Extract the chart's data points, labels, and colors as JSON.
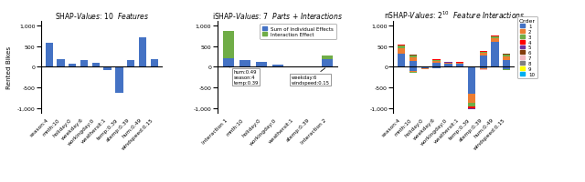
{
  "panel1": {
    "ylabel": "Rented Bikes",
    "ylim": [
      -1100,
      1100
    ],
    "yticks": [
      -1000,
      -500,
      0,
      500,
      1000
    ],
    "categories": [
      "season:4",
      "mnth:10",
      "holiday:0",
      "weekday:6",
      "workingday:0",
      "weathersit:1",
      "temp:0.39",
      "atemp:0.39",
      "hum:0.49",
      "windspeed:0.15"
    ],
    "values": [
      580,
      175,
      80,
      160,
      85,
      -75,
      -620,
      160,
      700,
      175
    ],
    "bar_color": "#4472C4"
  },
  "panel2": {
    "ylim": [
      -1100,
      1100
    ],
    "yticks": [
      -1000,
      -500,
      0,
      500,
      1000
    ],
    "categories": [
      "Interaction 1",
      "mnth:10",
      "holiday:0",
      "workingday:0",
      "weathersit:1",
      "atemp:0.39",
      "Interaction 2"
    ],
    "individual": [
      195,
      160,
      125,
      55,
      8,
      8,
      190
    ],
    "interaction": [
      660,
      0,
      0,
      0,
      0,
      0,
      80
    ],
    "individual_color": "#4472C4",
    "interaction_color": "#70AD47"
  },
  "panel3": {
    "ylim": [
      -1100,
      1100
    ],
    "yticks": [
      -1000,
      -500,
      0,
      500,
      1000
    ],
    "categories": [
      "season:4",
      "mnth:10",
      "holiday:0",
      "weekday:6",
      "workingday:0",
      "weathersit:1",
      "temp:0.39",
      "atemp:0.39",
      "hum:0.49",
      "windspeed:0.15"
    ],
    "order_colors": [
      "#4472C4",
      "#ED7D31",
      "#70AD47",
      "#FF0000",
      "#7030A0",
      "#843C0C",
      "#F4B8C1",
      "#808080",
      "#FFFF00",
      "#00B0F0"
    ],
    "order_labels": [
      "1",
      "2",
      "3",
      "4",
      "5",
      "6",
      "7",
      "8",
      "9",
      "10"
    ],
    "stacked_positive": [
      [
        310,
        145,
        3,
        100,
        75,
        75,
        3,
        260,
        600,
        165
      ],
      [
        140,
        80,
        2,
        45,
        18,
        18,
        2,
        70,
        80,
        80
      ],
      [
        55,
        35,
        1,
        22,
        8,
        10,
        1,
        35,
        45,
        40
      ],
      [
        18,
        12,
        0,
        8,
        4,
        4,
        0,
        12,
        18,
        12
      ],
      [
        8,
        7,
        0,
        4,
        2,
        2,
        0,
        5,
        8,
        5
      ],
      [
        4,
        4,
        0,
        2,
        1,
        1,
        0,
        3,
        4,
        3
      ],
      [
        2,
        2,
        0,
        1,
        1,
        1,
        0,
        2,
        2,
        2
      ],
      [
        1,
        1,
        0,
        1,
        0,
        0,
        0,
        1,
        1,
        1
      ],
      [
        1,
        1,
        0,
        0,
        0,
        0,
        0,
        1,
        1,
        1
      ],
      [
        0,
        0,
        0,
        0,
        0,
        0,
        0,
        0,
        0,
        0
      ]
    ],
    "stacked_negative": [
      [
        0,
        -100,
        -40,
        -25,
        0,
        0,
        -640,
        -40,
        0,
        -50
      ],
      [
        0,
        -28,
        -8,
        -8,
        0,
        0,
        -230,
        -15,
        0,
        -18
      ],
      [
        0,
        -12,
        -3,
        -3,
        0,
        0,
        -90,
        -7,
        0,
        -8
      ],
      [
        0,
        -6,
        -2,
        -2,
        0,
        0,
        -35,
        -3,
        0,
        -4
      ],
      [
        0,
        -3,
        -1,
        -1,
        0,
        0,
        -15,
        -2,
        0,
        -2
      ],
      [
        0,
        -2,
        0,
        0,
        0,
        0,
        -5,
        -1,
        0,
        -1
      ],
      [
        0,
        -1,
        0,
        0,
        0,
        0,
        -2,
        -1,
        0,
        -1
      ],
      [
        0,
        -1,
        0,
        0,
        0,
        0,
        -1,
        0,
        0,
        0
      ],
      [
        0,
        0,
        0,
        0,
        0,
        0,
        -1,
        0,
        0,
        0
      ],
      [
        0,
        0,
        0,
        0,
        0,
        0,
        0,
        0,
        0,
        0
      ]
    ]
  }
}
